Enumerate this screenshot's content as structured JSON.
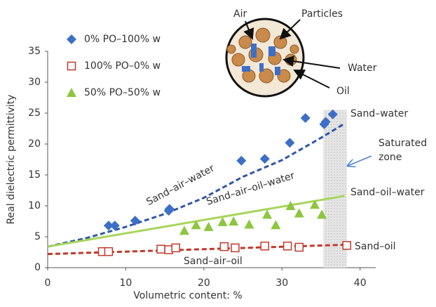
{
  "chart_data": {
    "type": "scatter",
    "x_label": "Volumetric content: %",
    "y_label": "Real dielectric permittivity",
    "xlim": [
      0,
      42
    ],
    "ylim": [
      0,
      35
    ],
    "xticks": [
      0,
      10,
      20,
      30,
      40
    ],
    "yticks": [
      0,
      5,
      10,
      15,
      20,
      25,
      30,
      35
    ],
    "series": [
      {
        "name": "0% PO–100% w",
        "color": "#3d6fc6",
        "marker": "diamond",
        "x": [
          7.8,
          8.6,
          11.2,
          15.5,
          15.6,
          24.8,
          27.8,
          31,
          33,
          35.4,
          35.6,
          36.5
        ],
        "y": [
          6.8,
          6.8,
          7.6,
          9.2,
          9.5,
          17.3,
          17.6,
          20.2,
          24.2,
          23.2,
          23.6,
          24.8
        ]
      },
      {
        "name": "100% PO–0% w",
        "color": "#c0392b",
        "marker": "square",
        "x": [
          7,
          7.8,
          14.5,
          15.5,
          16.4,
          22.6,
          24,
          27.8,
          30.7,
          32.2,
          38.3
        ],
        "y": [
          2.6,
          2.6,
          3,
          2.9,
          3.2,
          3.4,
          3.2,
          3.5,
          3.5,
          3.3,
          3.6
        ]
      },
      {
        "name": "50% PO–50% w",
        "color": "#8dc63f",
        "marker": "triangle",
        "x": [
          17.5,
          19,
          20.6,
          22.4,
          23.8,
          25.8,
          28.1,
          29.2,
          31.1,
          32.2,
          34.2,
          35.1
        ],
        "y": [
          6,
          6.9,
          6.6,
          7.4,
          7.5,
          7,
          8.6,
          6.9,
          10,
          8.8,
          10.2,
          8.6
        ]
      }
    ],
    "fits": [
      {
        "color": "#2f57a8",
        "dashed": true,
        "x": [
          0,
          5,
          10,
          15,
          20,
          25,
          30,
          35,
          38
        ],
        "y": [
          3.4,
          4.8,
          6.6,
          8.7,
          11.3,
          14.7,
          17.4,
          21,
          23.3
        ]
      },
      {
        "color": "#a6d55a",
        "dashed": false,
        "x": [
          0,
          38
        ],
        "y": [
          3.4,
          11.6
        ]
      },
      {
        "color": "#c0392b",
        "dashed": true,
        "x": [
          0,
          38
        ],
        "y": [
          2.2,
          3.7
        ]
      }
    ],
    "band": {
      "x": [
        35.3,
        38.3
      ],
      "y": [
        0,
        25.5
      ]
    },
    "annotations": [
      "Sand–water",
      "Sand–air–water",
      "Sand–air–oil–water",
      "Sand–oil–water",
      "Sand–oil",
      "Sand–air–oil",
      "Saturated zone"
    ],
    "inset_labels": [
      "Air",
      "Particles",
      "Water",
      "Oil"
    ]
  }
}
